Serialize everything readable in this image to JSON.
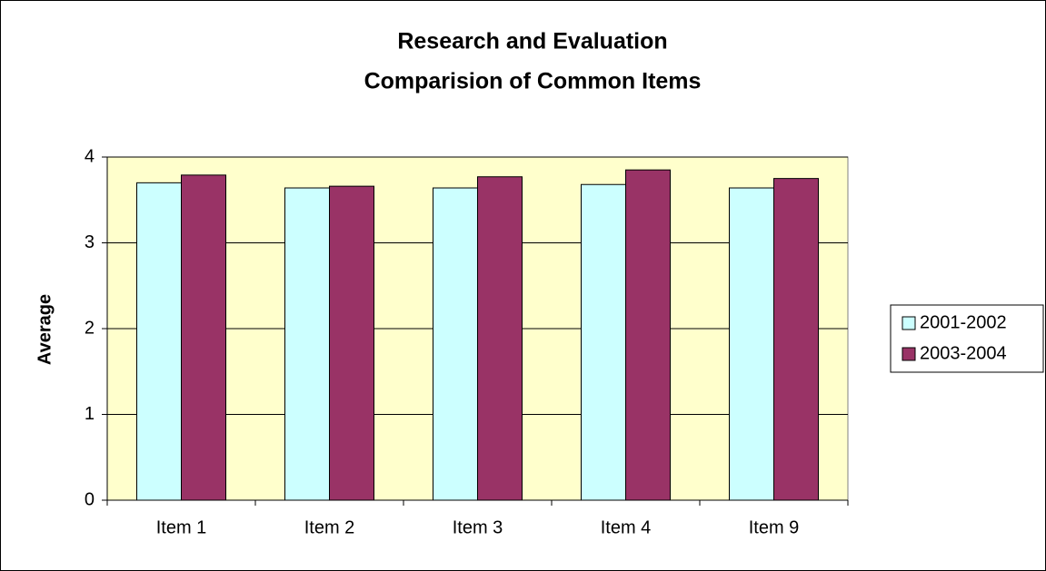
{
  "chart_data": {
    "type": "bar",
    "title": [
      "Research and Evaluation",
      "Comparision of Common Items"
    ],
    "ylabel": "Average",
    "categories": [
      "Item 1",
      "Item 2",
      "Item 3",
      "Item 4",
      "Item 9"
    ],
    "series": [
      {
        "name": "2001-2002",
        "color": "#ccffff",
        "values": [
          3.7,
          3.64,
          3.64,
          3.68,
          3.64
        ]
      },
      {
        "name": "2003-2004",
        "color": "#993366",
        "values": [
          3.79,
          3.66,
          3.77,
          3.85,
          3.75
        ]
      }
    ],
    "ylim": [
      0,
      4
    ],
    "yticks": [
      0,
      1,
      2,
      3,
      4
    ],
    "grid": true,
    "legend": "right",
    "plot_background": "#ffffcc"
  }
}
